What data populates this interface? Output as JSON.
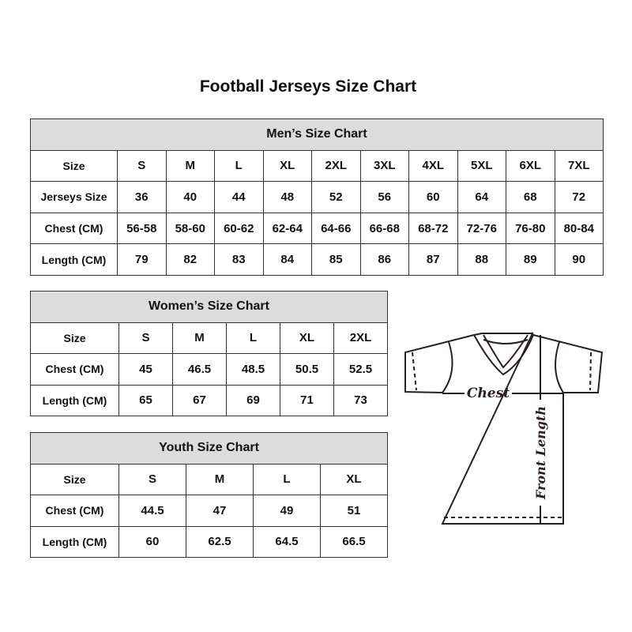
{
  "title": "Football Jerseys Size Chart",
  "men": {
    "heading": "Men’s Size Chart",
    "rows": [
      [
        "Size",
        "S",
        "M",
        "L",
        "XL",
        "2XL",
        "3XL",
        "4XL",
        "5XL",
        "6XL",
        "7XL"
      ],
      [
        "Jerseys Size",
        "36",
        "40",
        "44",
        "48",
        "52",
        "56",
        "60",
        "64",
        "68",
        "72"
      ],
      [
        "Chest (CM)",
        "56-58",
        "58-60",
        "60-62",
        "62-64",
        "64-66",
        "66-68",
        "68-72",
        "72-76",
        "76-80",
        "80-84"
      ],
      [
        "Length (CM)",
        "79",
        "82",
        "83",
        "84",
        "85",
        "86",
        "87",
        "88",
        "89",
        "90"
      ]
    ]
  },
  "women": {
    "heading": "Women’s Size Chart",
    "rows": [
      [
        "Size",
        "S",
        "M",
        "L",
        "XL",
        "2XL"
      ],
      [
        "Chest (CM)",
        "45",
        "46.5",
        "48.5",
        "50.5",
        "52.5"
      ],
      [
        "Length (CM)",
        "65",
        "67",
        "69",
        "71",
        "73"
      ]
    ]
  },
  "youth": {
    "heading": "Youth Size Chart",
    "rows": [
      [
        "Size",
        "S",
        "M",
        "L",
        "XL"
      ],
      [
        "Chest (CM)",
        "44.5",
        "47",
        "49",
        "51"
      ],
      [
        "Length (CM)",
        "60",
        "62.5",
        "64.5",
        "66.5"
      ]
    ]
  },
  "diagram": {
    "chest_label": "Chest",
    "length_label": "Front Length"
  },
  "colors": {
    "header_bg": "#dcdcdc",
    "border": "#333333"
  }
}
